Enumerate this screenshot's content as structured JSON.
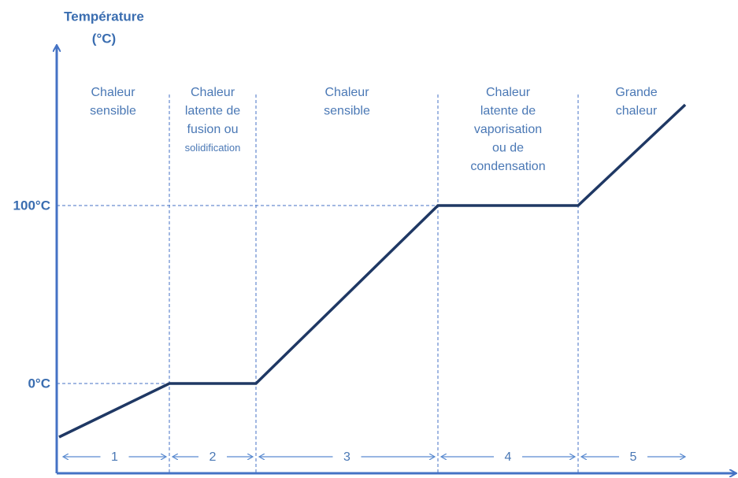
{
  "axis": {
    "title": [
      "Température",
      "(°C)"
    ],
    "ticks": [
      "100°C",
      "0°C"
    ]
  },
  "phases": [
    {
      "label": [
        "Chaleur",
        "sensible"
      ],
      "number": "1"
    },
    {
      "label": [
        "Chaleur",
        "latente de",
        "fusion ou",
        "solidification"
      ],
      "number": "2"
    },
    {
      "label": [
        "Chaleur",
        "sensible"
      ],
      "number": "3"
    },
    {
      "label": [
        "Chaleur",
        "latente de",
        "vaporisation",
        "ou de",
        "condensation"
      ],
      "number": "4"
    },
    {
      "label": [
        "Grande",
        "chaleur"
      ],
      "number": "5"
    }
  ]
}
